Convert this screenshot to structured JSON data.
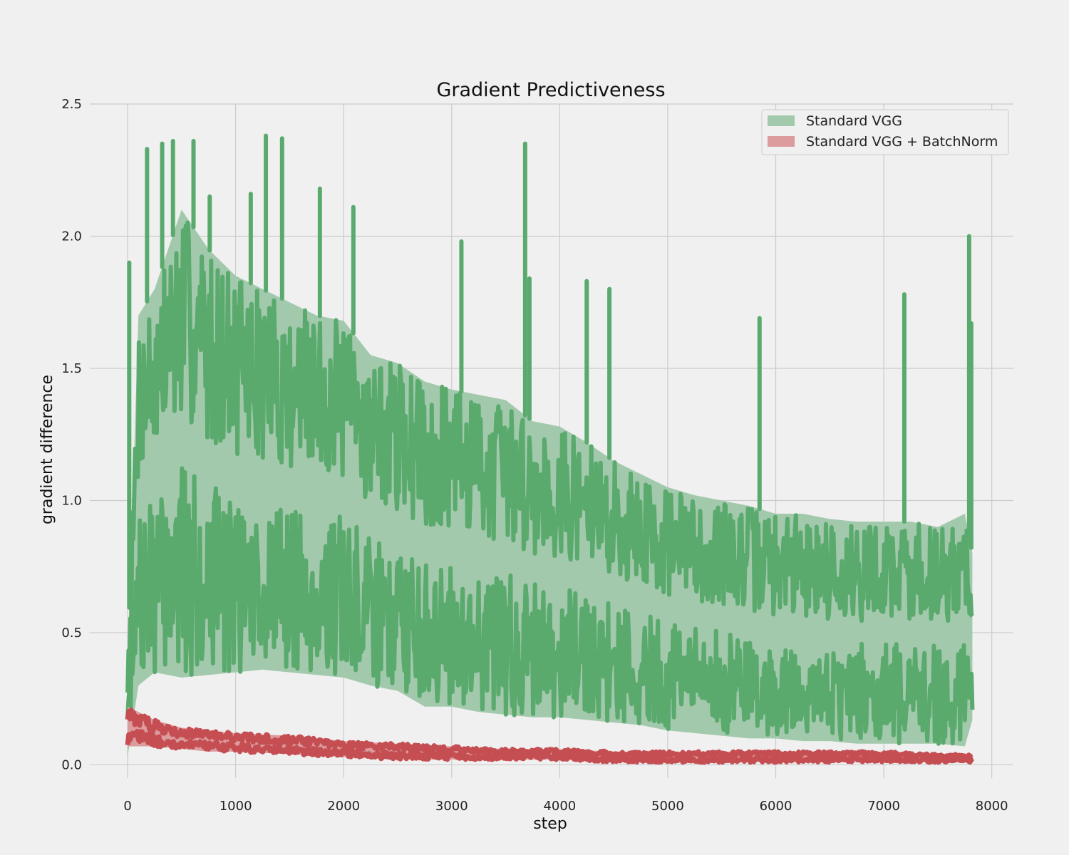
{
  "chart_data": {
    "type": "area",
    "title": "Gradient Predictiveness",
    "xlabel": "step",
    "ylabel": "gradient difference",
    "xlim": [
      -350,
      8200
    ],
    "ylim": [
      -0.05,
      2.5
    ],
    "xticks": [
      0,
      1000,
      2000,
      3000,
      4000,
      5000,
      6000,
      7000,
      8000
    ],
    "xtick_labels": [
      "0",
      "1000",
      "2000",
      "3000",
      "4000",
      "5000",
      "6000",
      "7000",
      "8000"
    ],
    "yticks": [
      0.0,
      0.5,
      1.0,
      1.5,
      2.0,
      2.5
    ],
    "ytick_labels": [
      "0.0",
      "0.5",
      "1.0",
      "1.5",
      "2.0",
      "2.5"
    ],
    "grid": true,
    "legend_position": "top-right",
    "series": [
      {
        "name": "Standard VGG",
        "color": "#5aaa6e",
        "fill_color": "#a3c9ad",
        "x": [
          0,
          100,
          250,
          500,
          750,
          1000,
          1250,
          1500,
          1750,
          2000,
          2250,
          2500,
          2750,
          3000,
          3250,
          3500,
          3750,
          4000,
          4250,
          4500,
          4750,
          5000,
          5250,
          5500,
          5750,
          6000,
          6250,
          6500,
          6750,
          7000,
          7250,
          7500,
          7750,
          7820
        ],
        "lower": [
          0.03,
          0.3,
          0.35,
          0.33,
          0.34,
          0.35,
          0.36,
          0.35,
          0.34,
          0.33,
          0.3,
          0.28,
          0.22,
          0.22,
          0.2,
          0.19,
          0.18,
          0.18,
          0.17,
          0.16,
          0.15,
          0.13,
          0.12,
          0.11,
          0.1,
          0.1,
          0.09,
          0.09,
          0.08,
          0.08,
          0.08,
          0.08,
          0.07,
          0.17
        ],
        "upper": [
          0.4,
          1.7,
          1.8,
          2.1,
          1.95,
          1.85,
          1.8,
          1.75,
          1.7,
          1.68,
          1.55,
          1.52,
          1.45,
          1.42,
          1.4,
          1.38,
          1.3,
          1.28,
          1.22,
          1.15,
          1.1,
          1.05,
          1.02,
          1.0,
          0.98,
          0.95,
          0.95,
          0.93,
          0.92,
          0.92,
          0.92,
          0.9,
          0.95,
          0.8
        ],
        "spikes": [
          {
            "x": 15,
            "y": 1.9
          },
          {
            "x": 180,
            "y": 2.33
          },
          {
            "x": 320,
            "y": 2.35
          },
          {
            "x": 420,
            "y": 2.36
          },
          {
            "x": 610,
            "y": 2.36
          },
          {
            "x": 760,
            "y": 2.15
          },
          {
            "x": 1140,
            "y": 2.16
          },
          {
            "x": 1280,
            "y": 2.38
          },
          {
            "x": 1430,
            "y": 2.37
          },
          {
            "x": 1780,
            "y": 2.18
          },
          {
            "x": 2090,
            "y": 2.11
          },
          {
            "x": 3090,
            "y": 1.98
          },
          {
            "x": 3680,
            "y": 2.35
          },
          {
            "x": 3720,
            "y": 1.84
          },
          {
            "x": 4250,
            "y": 1.83
          },
          {
            "x": 4460,
            "y": 1.8
          },
          {
            "x": 5850,
            "y": 1.69
          },
          {
            "x": 7190,
            "y": 1.78
          },
          {
            "x": 7790,
            "y": 2.0
          },
          {
            "x": 7810,
            "y": 1.67
          }
        ]
      },
      {
        "name": "Standard VGG + BatchNorm",
        "color": "#c44e52",
        "fill_color": "#dc9b9d",
        "x": [
          0,
          250,
          500,
          750,
          1000,
          1500,
          2000,
          2500,
          3000,
          3500,
          4000,
          4500,
          5000,
          5500,
          6000,
          6500,
          7000,
          7500,
          7820
        ],
        "lower": [
          0.07,
          0.07,
          0.06,
          0.05,
          0.05,
          0.04,
          0.03,
          0.02,
          0.02,
          0.02,
          0.02,
          0.01,
          0.01,
          0.01,
          0.01,
          0.01,
          0.01,
          0.01,
          0.01
        ],
        "upper": [
          0.22,
          0.17,
          0.14,
          0.13,
          0.12,
          0.11,
          0.09,
          0.08,
          0.07,
          0.06,
          0.06,
          0.05,
          0.05,
          0.05,
          0.05,
          0.05,
          0.05,
          0.04,
          0.04
        ],
        "spikes": []
      }
    ]
  }
}
